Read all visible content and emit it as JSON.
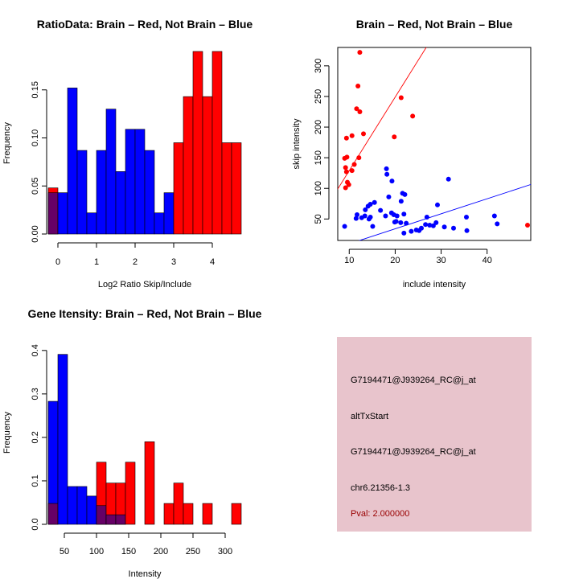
{
  "chart_data": [
    {
      "id": "ratio",
      "type": "bar",
      "title": "RatioData: Brain – Red, Not Brain – Blue",
      "xlabel": "Log2 Ratio Skip/Include",
      "ylabel": "Frequency",
      "xlim": [
        -0.25,
        4.75
      ],
      "ylim": [
        0,
        0.195
      ],
      "xticks": [
        0,
        1,
        2,
        3,
        4
      ],
      "yticks": [
        0.0,
        0.05,
        0.1,
        0.15
      ],
      "ytick_labels": [
        "0.00",
        "0.05",
        "0.10",
        "0.15"
      ],
      "bin_start": -0.25,
      "bin_width": 0.25,
      "series": [
        {
          "name": "Brain",
          "color": "#ff0000",
          "values": [
            0.048,
            0,
            0,
            0,
            0,
            0,
            0,
            0,
            0,
            0,
            0,
            0,
            0,
            0.095,
            0.143,
            0.19,
            0.143,
            0.19,
            0.095,
            0.095
          ]
        },
        {
          "name": "Not Brain",
          "color": "#0000ff",
          "values": [
            0.043,
            0.043,
            0.152,
            0.087,
            0.022,
            0.087,
            0.13,
            0.065,
            0.109,
            0.109,
            0.087,
            0.022,
            0.043,
            0,
            0,
            0,
            0,
            0,
            0,
            0
          ]
        }
      ],
      "overlap_color": "#660066"
    },
    {
      "id": "scatter",
      "type": "scatter",
      "title": "Brain – Red, Not Brain – Blue",
      "xlabel": "include intensity",
      "ylabel": "skip intensity",
      "xlim": [
        7.5,
        49.5
      ],
      "ylim": [
        15,
        330
      ],
      "xticks": [
        10,
        20,
        30,
        40
      ],
      "yticks": [
        50,
        100,
        150,
        200,
        250,
        300
      ],
      "series": [
        {
          "name": "Brain",
          "color": "#ff0000",
          "x": [
            12.3,
            11.9,
            21.3,
            11.6,
            23.8,
            19.8,
            13.1,
            12.3,
            10.6,
            9.4,
            9.5,
            12.1,
            11.1,
            9.0,
            9.2,
            9.4,
            10.6,
            9.6,
            9.9,
            9.2,
            48.8
          ],
          "y": [
            322,
            267,
            248,
            230,
            218,
            184,
            189,
            225,
            186,
            182,
            151,
            150,
            139,
            149,
            134,
            127,
            129,
            110,
            106,
            101,
            40
          ]
        },
        {
          "name": "Not Brain",
          "color": "#0000ff",
          "x": [
            18.1,
            18.2,
            19.3,
            21.6,
            22.1,
            18.6,
            21.3,
            15.5,
            14.6,
            14.1,
            13.5,
            16.8,
            21.9,
            11.7,
            13.4,
            14.6,
            12.7,
            11.5,
            14.3,
            19.2,
            19.7,
            17.9,
            20.4,
            29.2,
            31.6,
            19.9,
            20.2,
            21.2,
            22.4,
            26.6,
            26.9,
            28.9,
            28.3,
            27.5,
            25.7,
            24.6,
            30.7,
            32.7,
            35.5,
            41.6,
            42.2,
            15.1,
            21.9,
            23.5,
            25.2,
            35.6,
            9.0
          ],
          "y": [
            132,
            123,
            112,
            92,
            90,
            86,
            79,
            77,
            74,
            71,
            65,
            64,
            58,
            57,
            55,
            53,
            52,
            51,
            50,
            60,
            57,
            55,
            55,
            73,
            115,
            45,
            46,
            44,
            43,
            41,
            53,
            44,
            39,
            40,
            35,
            32,
            37,
            35,
            53,
            55,
            42,
            38,
            27,
            30,
            31,
            31,
            38
          ]
        }
      ],
      "lines": [
        {
          "color": "#ff0000",
          "intercept": 9,
          "slope": 12
        },
        {
          "color": "#0000ff",
          "intercept": -15,
          "slope": 2.45
        }
      ]
    },
    {
      "id": "intensity",
      "type": "bar",
      "title": "Gene Itensity: Brain – Red, Not Brain – Blue",
      "xlabel": "Intensity",
      "ylabel": "Frequency",
      "xlim": [
        25,
        325
      ],
      "ylim": [
        0,
        0.42
      ],
      "xticks": [
        50,
        100,
        150,
        200,
        250,
        300
      ],
      "yticks": [
        0.0,
        0.1,
        0.2,
        0.3,
        0.4
      ],
      "ytick_labels": [
        "0.0",
        "0.1",
        "0.2",
        "0.3",
        "0.4"
      ],
      "bin_start": 25,
      "bin_width": 15,
      "series": [
        {
          "name": "Brain",
          "color": "#ff0000",
          "values": [
            0.048,
            0,
            0,
            0,
            0,
            0.143,
            0.095,
            0.095,
            0.143,
            0,
            0.19,
            0,
            0.048,
            0.095,
            0.048,
            0,
            0.048,
            0,
            0,
            0.048
          ]
        },
        {
          "name": "Not Brain",
          "color": "#0000ff",
          "values": [
            0.283,
            0.391,
            0.087,
            0.087,
            0.065,
            0.043,
            0.022,
            0.022,
            0,
            0,
            0,
            0,
            0,
            0,
            0,
            0,
            0,
            0,
            0,
            0
          ]
        }
      ],
      "overlap_color": "#660066"
    }
  ],
  "info_box": {
    "background": "#e8c4cc",
    "probe_id": "G7194471@J939264_RC@j_at",
    "event_type": "altTxStart",
    "probe_id_repeat": "G7194471@J939264_RC@j_at",
    "location": "chr6.21356-1.3",
    "pval": "Pval: 2.000000"
  }
}
